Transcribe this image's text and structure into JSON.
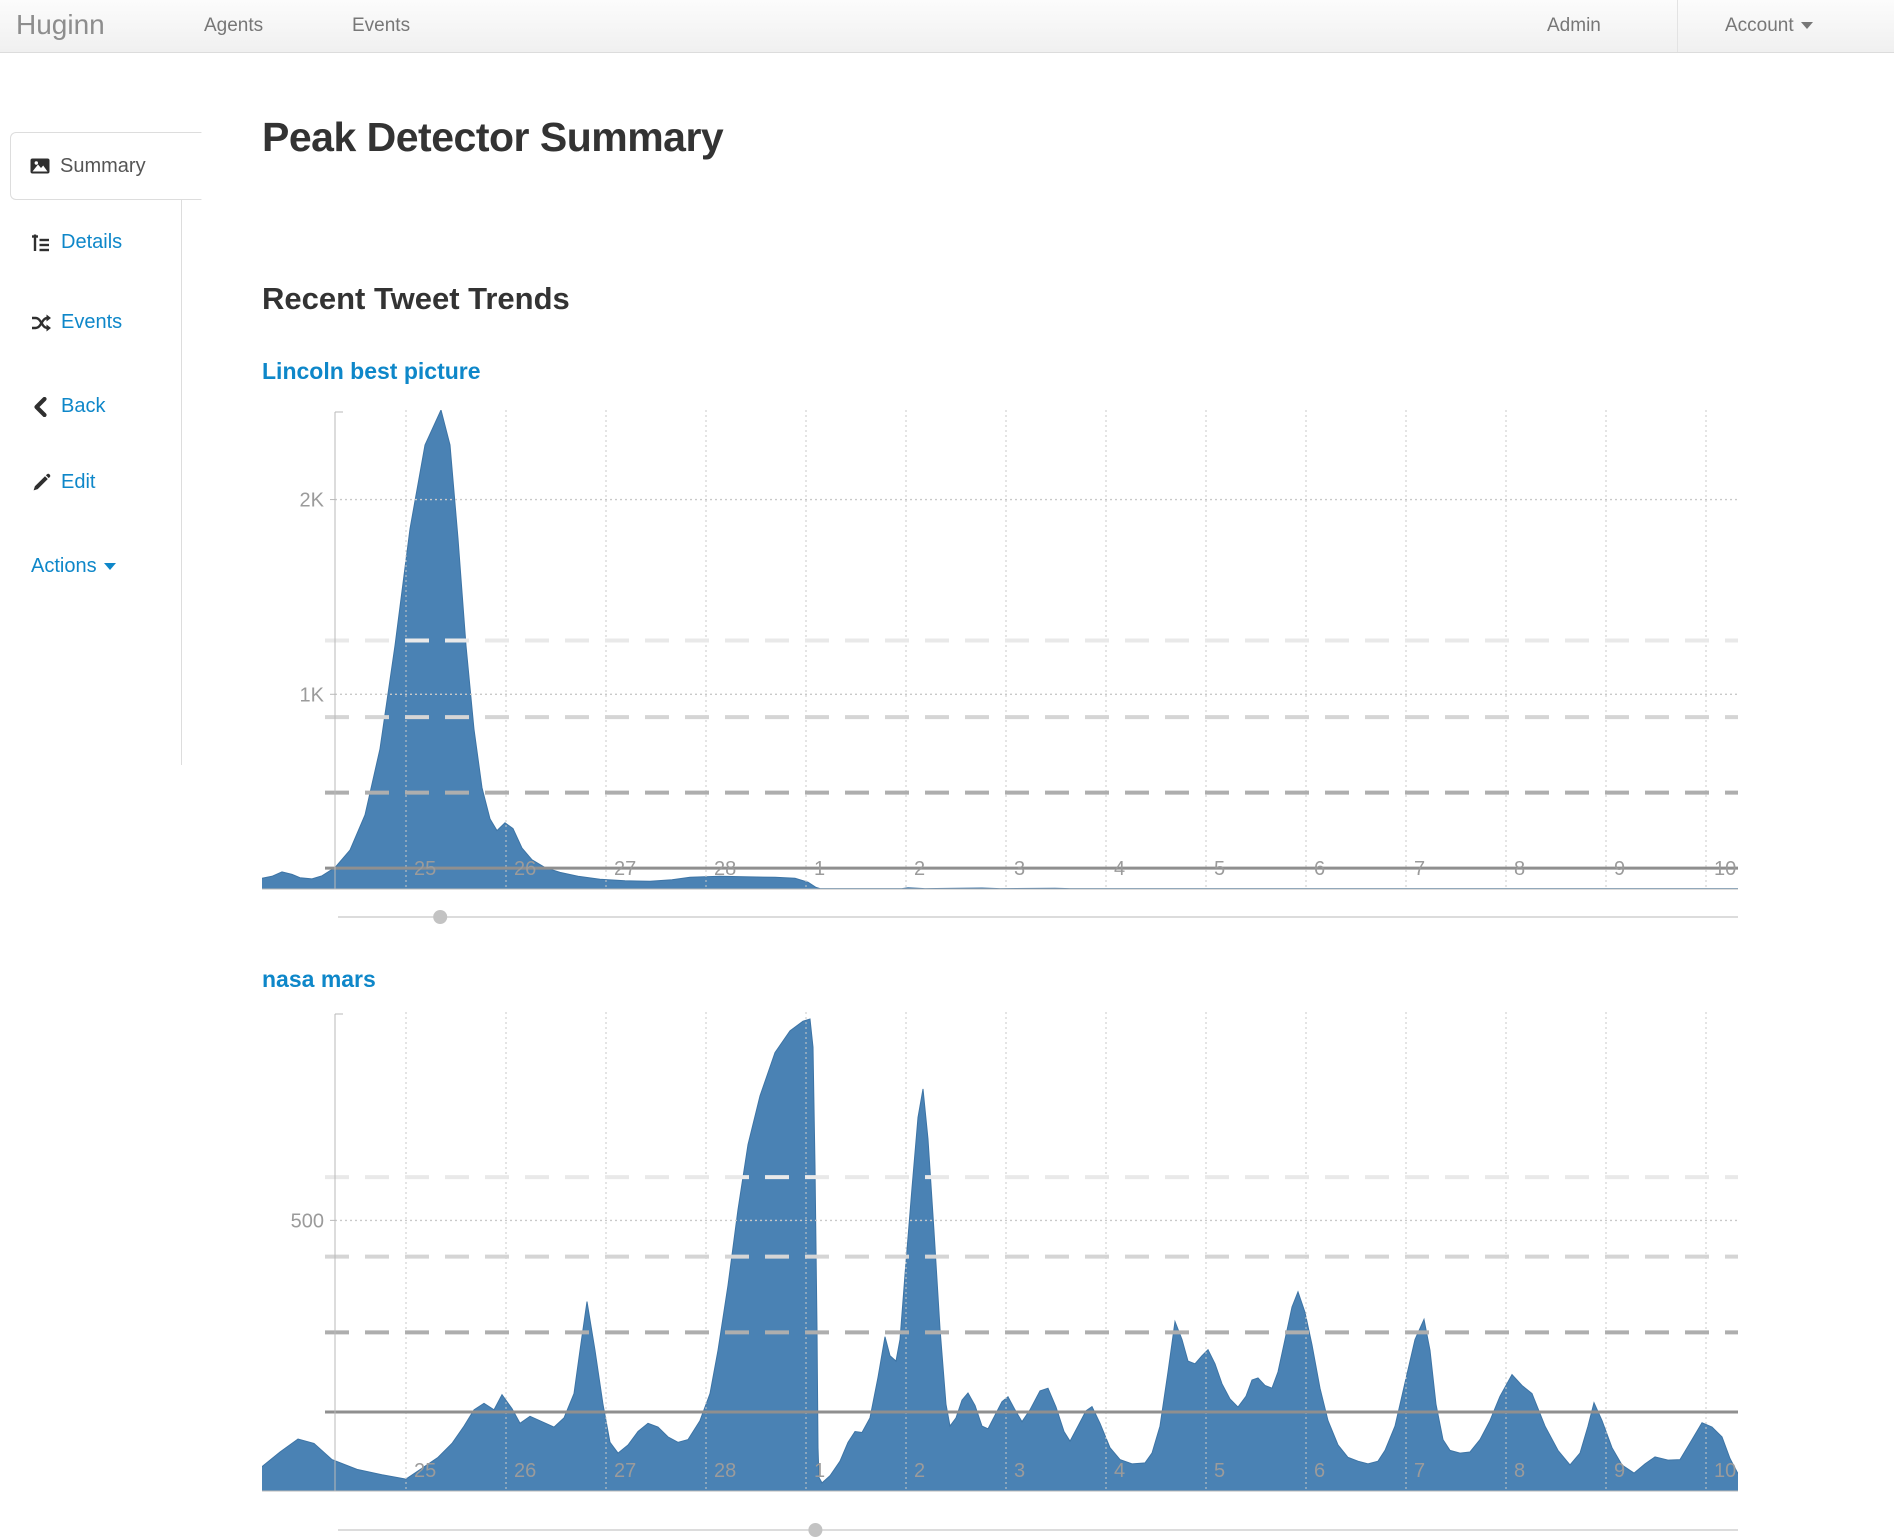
{
  "navbar": {
    "brand": "Huginn",
    "links": [
      {
        "label": "Agents"
      },
      {
        "label": "Events"
      }
    ],
    "right": [
      {
        "label": "Admin"
      },
      {
        "label": "Account"
      }
    ]
  },
  "sidebar": {
    "active_tab": {
      "label": "Summary"
    },
    "links": [
      {
        "label": "Details"
      },
      {
        "label": "Events"
      },
      {
        "label": "Back"
      },
      {
        "label": "Edit"
      },
      {
        "label": "Actions"
      }
    ]
  },
  "main": {
    "title": "Peak Detector Summary",
    "subtitle": "Recent Tweet Trends"
  },
  "colors": {
    "accent_blue": "#0e87c9",
    "area_fill": "#4a82b4",
    "area_stroke": "#3d74a5",
    "grid_dotted": "#c9c9c9",
    "dashed_levels": [
      "#e9e9e9",
      "#d5d5d5",
      "#aeaeae"
    ],
    "mean_solid": "#8f8f8f",
    "tick_text": "#9b9b9b",
    "axis_line": "#b9b9b9",
    "slider_track": "#dcdcdc",
    "slider_handle": "#c3c3c3"
  },
  "chart_data": [
    {
      "type": "area",
      "title": "Lincoln best picture",
      "x_labels": [
        "25",
        "26",
        "27",
        "28",
        "1",
        "2",
        "3",
        "4",
        "5",
        "6",
        "7",
        "8",
        "9",
        "10"
      ],
      "y_ticks": [
        {
          "label": "1K",
          "value": 1000
        },
        {
          "label": "2K",
          "value": 2000
        }
      ],
      "ylim": [
        0,
        2460
      ],
      "dashed_thresholds": [
        1276,
        883,
        495
      ],
      "mean_value": 107,
      "slider_frac": 0.073,
      "slider_offset": 28,
      "series": [
        [
          0,
          55
        ],
        [
          10,
          65
        ],
        [
          20,
          88
        ],
        [
          30,
          75
        ],
        [
          38,
          58
        ],
        [
          50,
          52
        ],
        [
          60,
          68
        ],
        [
          73,
          110
        ],
        [
          88,
          200
        ],
        [
          103,
          380
        ],
        [
          118,
          720
        ],
        [
          133,
          1250
        ],
        [
          148,
          1850
        ],
        [
          163,
          2280
        ],
        [
          179,
          2460
        ],
        [
          188,
          2280
        ],
        [
          196,
          1800
        ],
        [
          204,
          1250
        ],
        [
          212,
          820
        ],
        [
          220,
          520
        ],
        [
          228,
          360
        ],
        [
          235,
          300
        ],
        [
          243,
          340
        ],
        [
          251,
          310
        ],
        [
          260,
          210
        ],
        [
          270,
          150
        ],
        [
          283,
          110
        ],
        [
          298,
          85
        ],
        [
          316,
          65
        ],
        [
          338,
          50
        ],
        [
          363,
          42
        ],
        [
          388,
          40
        ],
        [
          410,
          48
        ],
        [
          428,
          60
        ],
        [
          458,
          65
        ],
        [
          488,
          62
        ],
        [
          513,
          60
        ],
        [
          533,
          55
        ],
        [
          546,
          35
        ],
        [
          554,
          8
        ],
        [
          558,
          2
        ],
        [
          640,
          2
        ],
        [
          646,
          6
        ],
        [
          663,
          2
        ],
        [
          720,
          5
        ],
        [
          738,
          2
        ],
        [
          793,
          4
        ],
        [
          808,
          2
        ],
        [
          1476,
          2
        ]
      ]
    },
    {
      "type": "area",
      "title": "nasa mars",
      "x_labels": [
        "25",
        "26",
        "27",
        "28",
        "1",
        "2",
        "3",
        "4",
        "5",
        "6",
        "7",
        "8",
        "9",
        "10"
      ],
      "y_ticks": [
        {
          "label": "500",
          "value": 500
        }
      ],
      "ylim": [
        0,
        885
      ],
      "dashed_thresholds": [
        580,
        433,
        293
      ],
      "mean_value": 146,
      "slider_frac": 0.341,
      "slider_offset": 39,
      "series": [
        [
          0,
          45
        ],
        [
          18,
          72
        ],
        [
          36,
          96
        ],
        [
          52,
          88
        ],
        [
          70,
          58
        ],
        [
          95,
          40
        ],
        [
          120,
          30
        ],
        [
          144,
          22
        ],
        [
          160,
          42
        ],
        [
          176,
          62
        ],
        [
          190,
          88
        ],
        [
          202,
          120
        ],
        [
          212,
          150
        ],
        [
          222,
          162
        ],
        [
          232,
          150
        ],
        [
          240,
          178
        ],
        [
          250,
          152
        ],
        [
          258,
          125
        ],
        [
          268,
          138
        ],
        [
          280,
          128
        ],
        [
          292,
          118
        ],
        [
          302,
          135
        ],
        [
          312,
          180
        ],
        [
          318,
          260
        ],
        [
          325,
          350
        ],
        [
          333,
          260
        ],
        [
          341,
          160
        ],
        [
          348,
          90
        ],
        [
          356,
          70
        ],
        [
          366,
          85
        ],
        [
          376,
          110
        ],
        [
          386,
          125
        ],
        [
          396,
          118
        ],
        [
          406,
          100
        ],
        [
          416,
          90
        ],
        [
          426,
          95
        ],
        [
          438,
          130
        ],
        [
          448,
          180
        ],
        [
          456,
          260
        ],
        [
          466,
          380
        ],
        [
          476,
          520
        ],
        [
          486,
          640
        ],
        [
          498,
          730
        ],
        [
          513,
          810
        ],
        [
          528,
          850
        ],
        [
          541,
          868
        ],
        [
          548,
          872
        ],
        [
          551,
          820
        ],
        [
          553,
          600
        ],
        [
          555,
          300
        ],
        [
          556,
          80
        ],
        [
          557,
          25
        ],
        [
          560,
          15
        ],
        [
          568,
          28
        ],
        [
          578,
          55
        ],
        [
          586,
          90
        ],
        [
          593,
          110
        ],
        [
          600,
          108
        ],
        [
          608,
          135
        ],
        [
          616,
          210
        ],
        [
          623,
          285
        ],
        [
          628,
          250
        ],
        [
          634,
          240
        ],
        [
          638,
          280
        ],
        [
          643,
          400
        ],
        [
          650,
          560
        ],
        [
          656,
          690
        ],
        [
          661,
          743
        ],
        [
          666,
          650
        ],
        [
          672,
          480
        ],
        [
          678,
          300
        ],
        [
          684,
          160
        ],
        [
          688,
          120
        ],
        [
          694,
          135
        ],
        [
          700,
          168
        ],
        [
          706,
          181
        ],
        [
          713,
          158
        ],
        [
          720,
          120
        ],
        [
          726,
          115
        ],
        [
          733,
          140
        ],
        [
          740,
          165
        ],
        [
          746,
          174
        ],
        [
          753,
          150
        ],
        [
          760,
          128
        ],
        [
          768,
          150
        ],
        [
          778,
          185
        ],
        [
          786,
          190
        ],
        [
          794,
          155
        ],
        [
          802,
          110
        ],
        [
          808,
          92
        ],
        [
          816,
          120
        ],
        [
          824,
          148
        ],
        [
          830,
          156
        ],
        [
          838,
          125
        ],
        [
          848,
          80
        ],
        [
          858,
          58
        ],
        [
          870,
          50
        ],
        [
          883,
          52
        ],
        [
          890,
          70
        ],
        [
          898,
          120
        ],
        [
          906,
          220
        ],
        [
          913,
          313
        ],
        [
          920,
          280
        ],
        [
          926,
          240
        ],
        [
          933,
          235
        ],
        [
          940,
          250
        ],
        [
          946,
          261
        ],
        [
          953,
          235
        ],
        [
          960,
          198
        ],
        [
          968,
          170
        ],
        [
          976,
          155
        ],
        [
          984,
          175
        ],
        [
          990,
          205
        ],
        [
          996,
          209
        ],
        [
          1003,
          195
        ],
        [
          1010,
          190
        ],
        [
          1016,
          220
        ],
        [
          1023,
          280
        ],
        [
          1030,
          340
        ],
        [
          1036,
          368
        ],
        [
          1043,
          330
        ],
        [
          1050,
          270
        ],
        [
          1058,
          190
        ],
        [
          1066,
          130
        ],
        [
          1076,
          85
        ],
        [
          1086,
          62
        ],
        [
          1096,
          55
        ],
        [
          1106,
          50
        ],
        [
          1116,
          55
        ],
        [
          1123,
          75
        ],
        [
          1133,
          120
        ],
        [
          1143,
          200
        ],
        [
          1153,
          280
        ],
        [
          1162,
          317
        ],
        [
          1168,
          260
        ],
        [
          1174,
          160
        ],
        [
          1181,
          95
        ],
        [
          1188,
          75
        ],
        [
          1198,
          70
        ],
        [
          1208,
          72
        ],
        [
          1218,
          95
        ],
        [
          1228,
          130
        ],
        [
          1238,
          175
        ],
        [
          1250,
          215
        ],
        [
          1260,
          195
        ],
        [
          1270,
          180
        ],
        [
          1283,
          120
        ],
        [
          1296,
          75
        ],
        [
          1308,
          48
        ],
        [
          1318,
          70
        ],
        [
          1326,
          120
        ],
        [
          1332,
          163
        ],
        [
          1340,
          130
        ],
        [
          1350,
          80
        ],
        [
          1360,
          48
        ],
        [
          1372,
          33
        ],
        [
          1383,
          50
        ],
        [
          1393,
          63
        ],
        [
          1406,
          57
        ],
        [
          1418,
          58
        ],
        [
          1430,
          95
        ],
        [
          1440,
          126
        ],
        [
          1450,
          118
        ],
        [
          1460,
          100
        ],
        [
          1468,
          60
        ],
        [
          1476,
          32
        ]
      ]
    }
  ]
}
